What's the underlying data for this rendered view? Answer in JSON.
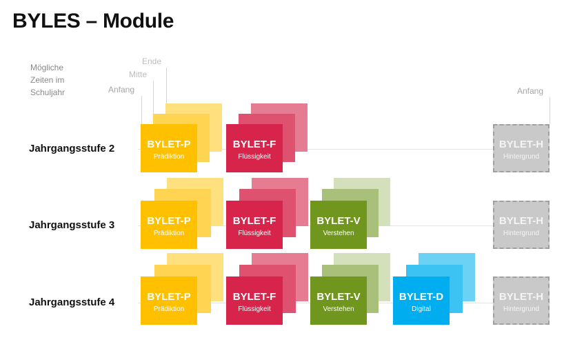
{
  "title": "BYLES – Module",
  "legend": {
    "line1": "Mögliche",
    "line2": "Zeiten im",
    "line3": "Schuljahr",
    "anfang": "Anfang",
    "mitte": "Mitte",
    "ende": "Ende",
    "anfang_right": "Anfang"
  },
  "rows": [
    {
      "label": "Jahrgangsstufe 2"
    },
    {
      "label": "Jahrgangsstufe 3"
    },
    {
      "label": "Jahrgangsstufe 4"
    }
  ],
  "modules": {
    "p": {
      "name": "BYLET-P",
      "sub": "Prädiktion",
      "color": "#FFC000",
      "color_mid": "#FFD453",
      "color_light": "#FFE07F"
    },
    "f": {
      "name": "BYLET-F",
      "sub": "Flüssigkeit",
      "color": "#D6244A",
      "color_mid": "#DE5270",
      "color_light": "#E57C92"
    },
    "v": {
      "name": "BYLET-V",
      "sub": "Verstehen",
      "color": "#70961E",
      "color_mid": "#A9C07A",
      "color_light": "#D4DFBB"
    },
    "d": {
      "name": "BYLET-D",
      "sub": "Digital",
      "color": "#00AEEF",
      "color_mid": "#3DC3F3",
      "color_light": "#6BD2F6"
    },
    "h": {
      "name": "BYLET-H",
      "sub": "Hintergrund",
      "color": "#C9C9C9",
      "border": "#9F9F9F"
    }
  }
}
